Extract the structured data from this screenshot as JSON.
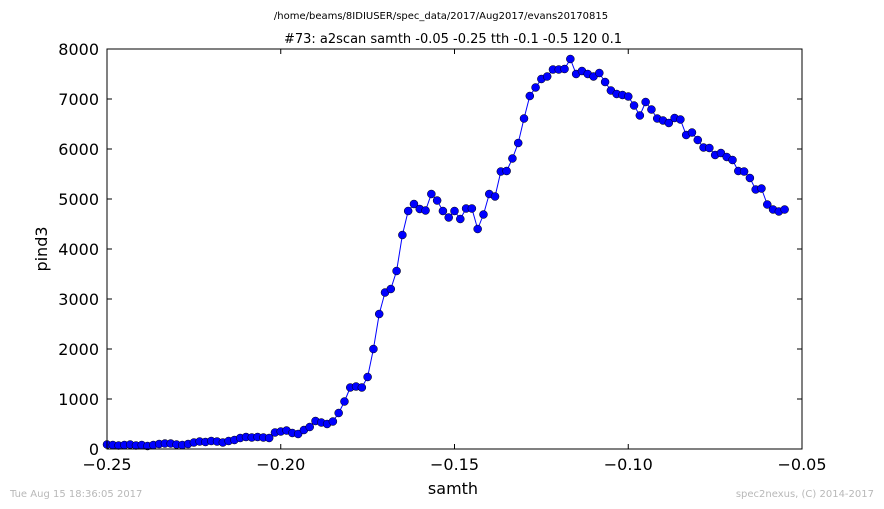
{
  "header": {
    "file_path": "/home/beams/8IDIUSER/spec_data/2017/Aug2017/evans20170815",
    "scan_title": "#73: a2scan  samth -0.05 -0.25  tth -0.1 -0.5  120 0.1"
  },
  "footer": {
    "timestamp": "Tue Aug 15 18:36:05 2017",
    "credit": "spec2nexus, (C) 2014-2017"
  },
  "colors": {
    "series": "#0000ff",
    "marker_edge": "#000000"
  },
  "chart_data": {
    "type": "line",
    "title": "#73: a2scan  samth -0.05 -0.25  tth -0.1 -0.5  120 0.1",
    "xlabel": "samth",
    "ylabel": "pind3",
    "xlim": [
      -0.25,
      -0.05
    ],
    "ylim": [
      0,
      8000
    ],
    "grid": false,
    "markers": "circle",
    "x_ticks": [
      -0.25,
      -0.2,
      -0.15,
      -0.1,
      -0.05
    ],
    "x_tick_labels": [
      "−0.25",
      "−0.20",
      "−0.15",
      "−0.10",
      "−0.05"
    ],
    "y_ticks": [
      0,
      1000,
      2000,
      3000,
      4000,
      5000,
      6000,
      7000,
      8000
    ],
    "y_tick_labels": [
      "0",
      "1000",
      "2000",
      "3000",
      "4000",
      "5000",
      "6000",
      "7000",
      "8000"
    ],
    "series": [
      {
        "x_start": -0.25,
        "x_step": 0.0016667,
        "y": [
          90,
          80,
          70,
          80,
          90,
          70,
          80,
          60,
          80,
          100,
          110,
          110,
          90,
          80,
          100,
          130,
          150,
          140,
          160,
          150,
          130,
          160,
          180,
          220,
          240,
          230,
          240,
          230,
          220,
          330,
          350,
          370,
          320,
          300,
          380,
          440,
          560,
          530,
          500,
          550,
          720,
          950,
          1230,
          1250,
          1230,
          1440,
          2000,
          2700,
          3130,
          3200,
          3560,
          4280,
          4760,
          4900,
          4800,
          4770,
          5100,
          4970,
          4760,
          4630,
          4760,
          4600,
          4810,
          4810,
          4400,
          4690,
          5100,
          5050,
          5550,
          5560,
          5810,
          6120,
          6610,
          7060,
          7230,
          7400,
          7450,
          7590,
          7590,
          7600,
          7800,
          7500,
          7560,
          7500,
          7450,
          7520,
          7340,
          7170,
          7100,
          7080,
          7050,
          6870,
          6670,
          6940,
          6790,
          6610,
          6570,
          6520,
          6620,
          6590,
          6280,
          6330,
          6180,
          6030,
          6020,
          5880,
          5920,
          5840,
          5780,
          5560,
          5550,
          5420,
          5190,
          5210,
          4890,
          4790,
          4750,
          4790
        ]
      }
    ]
  }
}
